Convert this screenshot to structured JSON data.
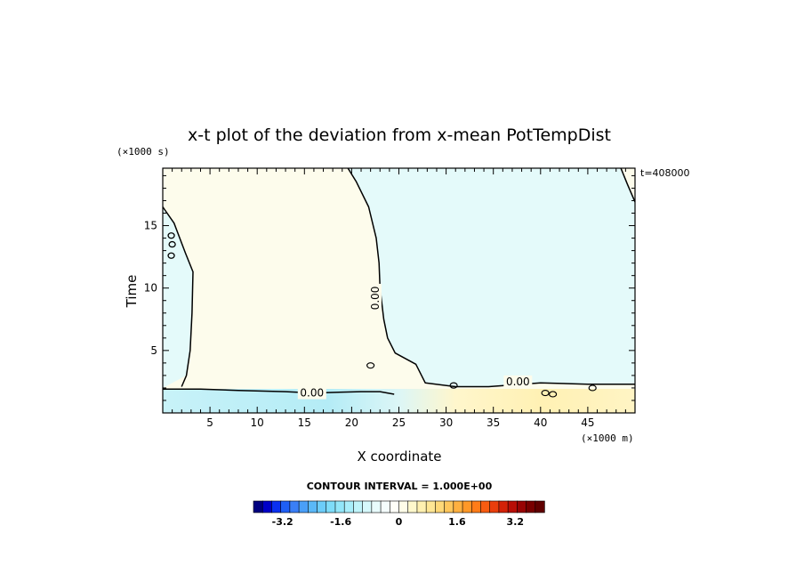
{
  "chart_data": {
    "type": "heatmap",
    "title": "x-t plot of the deviation from x-mean PotTempDist",
    "xlabel": "X coordinate",
    "ylabel": "Time",
    "x_unit": "(×1000 m)",
    "y_unit": "(×1000 s)",
    "time_stamp": "t=408000",
    "xlim": [
      0,
      50
    ],
    "ylim": [
      0,
      19.6
    ],
    "x_ticks": [
      5,
      10,
      15,
      20,
      25,
      30,
      35,
      40,
      45
    ],
    "x_tick_labels": [
      "5",
      "10",
      "15",
      "20",
      "25",
      "30",
      "35",
      "40",
      "45"
    ],
    "y_ticks": [
      5,
      10,
      15
    ],
    "y_tick_labels": [
      "5",
      "10",
      "15"
    ],
    "contour_interval_text": "CONTOUR INTERVAL = 1.000E+00",
    "contour_labels": [
      {
        "text": "0.00",
        "x": 15.8,
        "y": 1.6
      },
      {
        "text": "0.00",
        "x": 22.5,
        "y": 9.2
      },
      {
        "text": "0.00",
        "x": 37.6,
        "y": 2.5
      }
    ],
    "regions": {
      "positive_color": "#fdfcec",
      "negative_color": "#e4fafa",
      "zero_contour_top_x": [
        19.6,
        20.5,
        21.8,
        22.6,
        22.9,
        23.0,
        23.4,
        23.8,
        24.6,
        26.8,
        27.8,
        31.0,
        34.5,
        40.0,
        45.0,
        50.0
      ],
      "zero_contour_top_y": [
        19.6,
        18.5,
        16.5,
        14.0,
        12.0,
        10.0,
        7.5,
        6.0,
        4.8,
        3.9,
        2.4,
        2.1,
        2.1,
        2.4,
        2.3,
        2.3
      ]
    },
    "colorbar": {
      "tick_labels": [
        "-3.2",
        "-1.6",
        "0",
        "1.6",
        "3.2"
      ],
      "tick_values": [
        -3.2,
        -1.6,
        0,
        1.6,
        3.2
      ],
      "range": [
        -4.0,
        4.0
      ],
      "colors": [
        "#00007f",
        "#0000c8",
        "#0a30f0",
        "#1f5ff5",
        "#3a7ff7",
        "#4a9ff8",
        "#5ab8f8",
        "#6cccf9",
        "#7edcf9",
        "#92e6f9",
        "#a8eefa",
        "#c0f4fa",
        "#d6f8fb",
        "#e8fbfc",
        "#f4fdfd",
        "#fffff8",
        "#fffde8",
        "#fff8cc",
        "#fff0b0",
        "#ffe694",
        "#ffd878",
        "#ffc65c",
        "#ffb040",
        "#ff9828",
        "#ff7c18",
        "#f85c10",
        "#ea3e0c",
        "#d42208",
        "#b80e06",
        "#980404",
        "#780000",
        "#600000"
      ]
    }
  }
}
